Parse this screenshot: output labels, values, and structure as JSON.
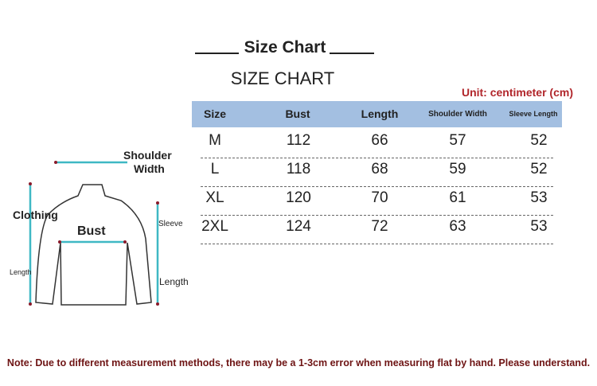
{
  "title": "Size Chart",
  "subtitle": "SIZE CHART",
  "unit": "Unit: centimeter (cm)",
  "table": {
    "headers": [
      "Size",
      "Bust",
      "Length",
      "Shoulder Width",
      "Sleeve Length"
    ],
    "rows": [
      [
        "M",
        "112",
        "66",
        "57",
        "52"
      ],
      [
        "L",
        "118",
        "68",
        "59",
        "52"
      ],
      [
        "XL",
        "120",
        "70",
        "61",
        "53"
      ],
      [
        "2XL",
        "124",
        "72",
        "63",
        "53"
      ]
    ]
  },
  "diagram": {
    "shoulder": "Shoulder",
    "width": "Width",
    "clothing": "Clothing",
    "length_left": "Length",
    "bust": "Bust",
    "sleeve": "Sleeve",
    "length_right": "Length"
  },
  "note": "Note: Due to different measurement methods, there may be a 1-3cm error when measuring flat by hand. Please understand.",
  "colors": {
    "header_bg": "#a3bfe1",
    "unit": "#b1262b",
    "note": "#6e1414",
    "measure_line": "#3fb8c4"
  }
}
